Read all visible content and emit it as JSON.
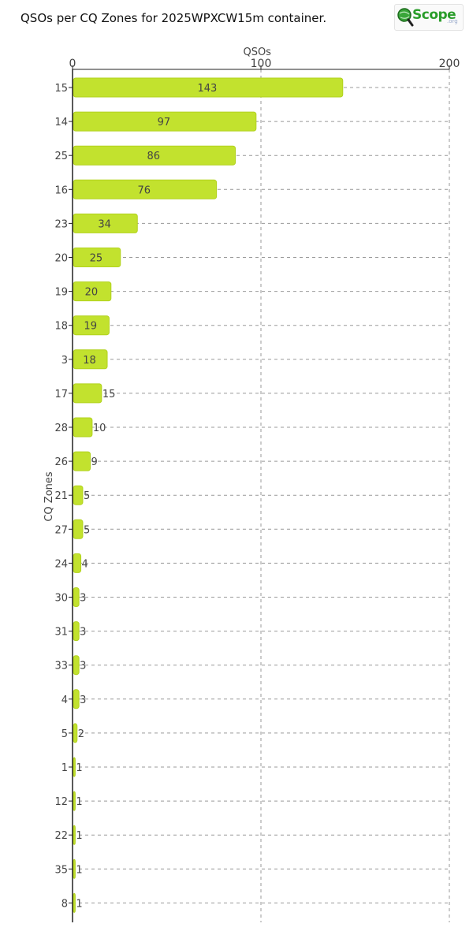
{
  "header": {
    "title": "QSOs per CQ Zones for 2025WPXCW15m container.",
    "logo_text": "Scope",
    "logo_suffix": ".org",
    "logo_icon": "globe-magnifier-icon"
  },
  "colors": {
    "bar_fill": "#c2e22e",
    "bar_stroke": "#b2d21e",
    "grid": "#999999",
    "label": "#444444"
  },
  "chart_data": {
    "type": "bar",
    "orientation": "horizontal",
    "xlabel": "QSOs",
    "ylabel": "CQ Zones",
    "xlim": [
      0,
      200
    ],
    "xticks": [
      0,
      100,
      200
    ],
    "x_axis_position": "top",
    "grid": true,
    "categories": [
      "15",
      "14",
      "25",
      "16",
      "23",
      "20",
      "19",
      "18",
      "3",
      "17",
      "28",
      "26",
      "21",
      "27",
      "24",
      "30",
      "31",
      "33",
      "4",
      "5",
      "1",
      "12",
      "22",
      "35",
      "8"
    ],
    "values": [
      143,
      97,
      86,
      76,
      34,
      25,
      20,
      19,
      18,
      15,
      10,
      9,
      5,
      5,
      4,
      3,
      3,
      3,
      3,
      2,
      1,
      1,
      1,
      1,
      1
    ]
  }
}
